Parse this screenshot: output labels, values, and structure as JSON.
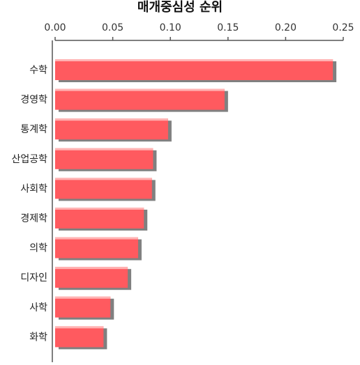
{
  "chart_data": {
    "type": "bar",
    "orientation": "horizontal",
    "title": "매개중심성 순위",
    "xlabel": "",
    "ylabel": "",
    "x_axis_position": "top",
    "xlim": [
      0,
      0.25
    ],
    "xticks": [
      "0.00",
      "0.05",
      "0.10",
      "0.15",
      "0.20",
      "0.25"
    ],
    "grid": false,
    "categories": [
      "수학",
      "경영학",
      "통계학",
      "산업공학",
      "사회학",
      "경제학",
      "의학",
      "디자인",
      "사학",
      "화학"
    ],
    "values": [
      0.241,
      0.147,
      0.098,
      0.085,
      0.084,
      0.077,
      0.072,
      0.063,
      0.048,
      0.042
    ],
    "colors": {
      "bar": "#ff5a5f",
      "bar_highlight": "#ffb3b3",
      "bar_shadow": "#808080",
      "axis": "#555555"
    }
  }
}
